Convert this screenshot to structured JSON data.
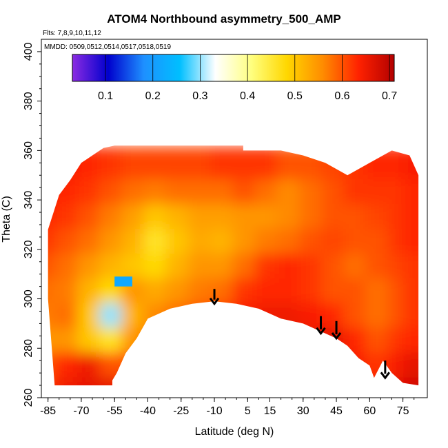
{
  "chart_data": {
    "type": "heatmap",
    "title": "ATOM4 Northbound asymmetry_500_AMP",
    "flights_note": "Flts: 7,8,9,10,11,12",
    "dates_note": "MMDD: 0509,0512,0514,0517,0518,0519",
    "xlabel": "Latitude (deg N)",
    "ylabel": "Theta (C)",
    "xlim": [
      -88,
      86
    ],
    "ylim": [
      260,
      405
    ],
    "x_ticks": [
      -85,
      -70,
      -55,
      -40,
      -25,
      -10,
      5,
      15,
      30,
      45,
      60,
      75
    ],
    "x_tick_labels": [
      "-85",
      "-70",
      "-55",
      "-40",
      "-25",
      "-10",
      "5",
      "15",
      "30",
      "45",
      "60",
      "75"
    ],
    "y_ticks": [
      260,
      280,
      300,
      320,
      340,
      360,
      380,
      400
    ],
    "y_tick_labels": [
      "260",
      "280",
      "300",
      "320",
      "340",
      "360",
      "380",
      "400"
    ],
    "colorbar": {
      "range": [
        0.03,
        0.71
      ],
      "ticks": [
        0.1,
        0.2,
        0.3,
        0.4,
        0.5,
        0.6,
        0.7
      ],
      "tick_labels": [
        "0.1",
        "0.2",
        "0.3",
        "0.4",
        "0.5",
        "0.6",
        "0.7"
      ],
      "colors": [
        "#8b2be2",
        "#0000cd",
        "#1e90ff",
        "#00bfff",
        "#ffffff",
        "#ffff80",
        "#ffd700",
        "#ff8c00",
        "#ff2200",
        "#b30000"
      ]
    },
    "coverage_top": [
      [
        -85,
        328
      ],
      [
        -80,
        342
      ],
      [
        -75,
        348
      ],
      [
        -70,
        355
      ],
      [
        -65,
        358
      ],
      [
        -60,
        361
      ],
      [
        -55,
        362
      ],
      [
        -50,
        362
      ],
      [
        -40,
        362
      ],
      [
        -20,
        362
      ],
      [
        0,
        362
      ],
      [
        3,
        362
      ],
      [
        3,
        360
      ],
      [
        10,
        360
      ],
      [
        20,
        360
      ],
      [
        30,
        358
      ],
      [
        40,
        355
      ],
      [
        50,
        350
      ],
      [
        60,
        355
      ],
      [
        70,
        360
      ],
      [
        78,
        358
      ],
      [
        82,
        350
      ]
    ],
    "coverage_bottom": [
      [
        -85,
        300
      ],
      [
        -82,
        265
      ],
      [
        -70,
        265
      ],
      [
        -56,
        265
      ],
      [
        -56,
        267
      ],
      [
        -54,
        270
      ],
      [
        -50,
        278
      ],
      [
        -45,
        284
      ],
      [
        -40,
        292
      ],
      [
        -30,
        296
      ],
      [
        -20,
        298
      ],
      [
        -10,
        299
      ],
      [
        0,
        298
      ],
      [
        10,
        296
      ],
      [
        20,
        292
      ],
      [
        30,
        290
      ],
      [
        40,
        286
      ],
      [
        45,
        284
      ],
      [
        50,
        281
      ],
      [
        55,
        276
      ],
      [
        60,
        273
      ],
      [
        62,
        268
      ],
      [
        66,
        275
      ],
      [
        70,
        270
      ],
      [
        75,
        266
      ],
      [
        82,
        265
      ]
    ],
    "values_grid": {
      "lats": [
        -85,
        -75,
        -65,
        -55,
        -45,
        -35,
        -25,
        -15,
        -5,
        5,
        15,
        25,
        35,
        45,
        55,
        65,
        75,
        82
      ],
      "thetas": [
        265,
        275,
        285,
        295,
        305,
        315,
        325,
        335,
        345,
        355
      ],
      "values": [
        [
          0.62,
          0.65,
          0.66,
          0.66,
          0.64,
          0.62,
          0.62,
          0.63,
          0.64,
          0.64,
          0.63,
          0.64,
          0.65,
          0.66,
          0.66,
          0.64,
          0.66,
          0.68
        ],
        [
          0.6,
          0.63,
          0.65,
          0.6,
          0.6,
          0.6,
          0.62,
          0.63,
          0.64,
          0.65,
          0.64,
          0.64,
          0.66,
          0.66,
          0.64,
          0.62,
          0.64,
          0.66
        ],
        [
          0.55,
          0.55,
          0.5,
          0.46,
          0.55,
          0.58,
          0.6,
          0.62,
          0.64,
          0.65,
          0.65,
          0.66,
          0.66,
          0.66,
          0.63,
          0.6,
          0.62,
          0.63
        ],
        [
          0.57,
          0.58,
          0.5,
          0.3,
          0.52,
          0.56,
          0.58,
          0.6,
          0.62,
          0.64,
          0.65,
          0.65,
          0.64,
          0.63,
          0.6,
          0.58,
          0.6,
          0.62
        ],
        [
          0.58,
          0.57,
          0.52,
          0.48,
          0.55,
          0.53,
          0.55,
          0.57,
          0.58,
          0.62,
          0.63,
          0.63,
          0.62,
          0.6,
          0.6,
          0.58,
          0.6,
          0.62
        ],
        [
          0.6,
          0.58,
          0.55,
          0.52,
          0.5,
          0.48,
          0.52,
          0.55,
          0.55,
          0.58,
          0.62,
          0.63,
          0.62,
          0.6,
          0.58,
          0.6,
          0.61,
          0.62
        ],
        [
          0.62,
          0.6,
          0.58,
          0.55,
          0.52,
          0.46,
          0.5,
          0.53,
          0.52,
          0.55,
          0.57,
          0.58,
          0.6,
          0.61,
          0.6,
          0.6,
          0.62,
          0.63
        ],
        [
          0.63,
          0.62,
          0.6,
          0.57,
          0.54,
          0.5,
          0.52,
          0.54,
          0.54,
          0.55,
          0.55,
          0.56,
          0.58,
          0.6,
          0.6,
          0.61,
          0.62,
          0.63
        ],
        [
          0.64,
          0.63,
          0.62,
          0.6,
          0.58,
          0.57,
          0.58,
          0.58,
          0.58,
          0.6,
          0.58,
          0.56,
          0.58,
          0.6,
          0.62,
          0.62,
          0.62,
          0.63
        ],
        [
          0.64,
          0.64,
          0.63,
          0.62,
          0.61,
          0.61,
          0.61,
          0.61,
          0.62,
          0.62,
          0.62,
          0.6,
          0.6,
          0.61,
          0.62,
          0.63,
          0.63,
          0.64
        ]
      ]
    },
    "blue_patch": {
      "lat": [
        -55,
        -47
      ],
      "theta": [
        305,
        309
      ]
    },
    "arrows": [
      {
        "lat": -10,
        "theta_top": 304,
        "theta_bottom": 298
      },
      {
        "lat": 38,
        "theta_top": 293,
        "theta_bottom": 286
      },
      {
        "lat": 45,
        "theta_top": 291,
        "theta_bottom": 284
      },
      {
        "lat": 67,
        "theta_top": 275,
        "theta_bottom": 268
      }
    ],
    "grid": false,
    "legend_placement": "top (inset colorbar)"
  }
}
